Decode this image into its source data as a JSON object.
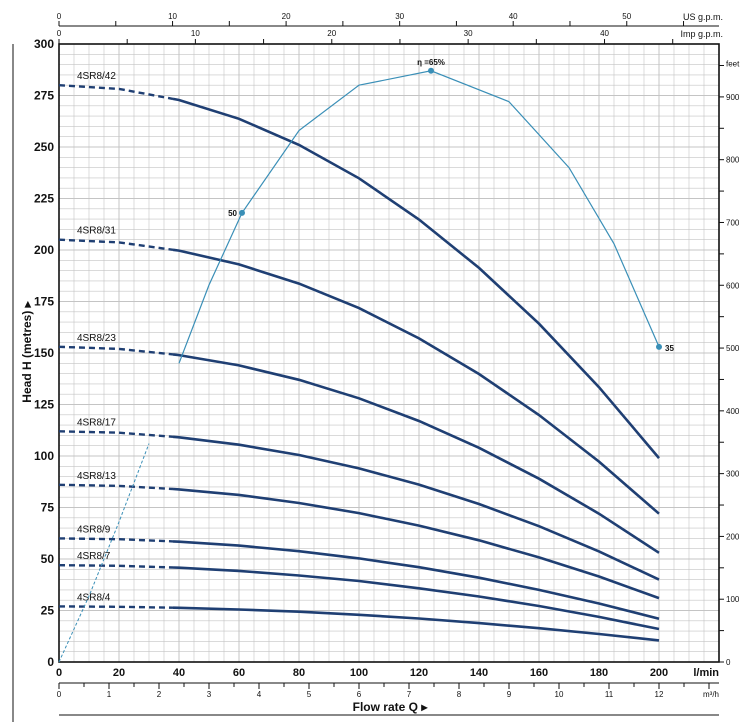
{
  "chart_data": {
    "type": "line",
    "title": "",
    "xlabel": "Flow rate Q",
    "ylabel": "Head H (metres)",
    "xlim": [
      0,
      220
    ],
    "ylim": [
      0,
      300
    ],
    "grid": true,
    "x_unit": "l/min",
    "x_ticks": [
      0,
      20,
      40,
      60,
      80,
      100,
      120,
      140,
      160,
      180,
      200
    ],
    "y_ticks": [
      0,
      25,
      50,
      75,
      100,
      125,
      150,
      175,
      200,
      225,
      250,
      275,
      300
    ],
    "secondary_axes": {
      "top_us": {
        "unit": "US g.p.m.",
        "ticks": [
          0,
          10,
          20,
          30,
          40,
          50
        ]
      },
      "top_imp": {
        "unit": "Imp g.p.m.",
        "ticks": [
          0,
          10,
          20,
          30,
          40
        ]
      },
      "bottom_m3h": {
        "unit": "m³/h",
        "ticks": [
          0,
          1,
          2,
          3,
          4,
          5,
          6,
          7,
          8,
          9,
          10,
          11,
          12
        ]
      },
      "right_feet": {
        "unit": "feet",
        "ticks": [
          0,
          100,
          200,
          300,
          400,
          500,
          600,
          700,
          800,
          900
        ]
      }
    },
    "x": [
      0,
      20,
      40,
      60,
      80,
      100,
      120,
      140,
      160,
      180,
      200
    ],
    "dashed_below_q": 38,
    "series": [
      {
        "name": "4SR8/42",
        "values": [
          280,
          278.2,
          272.8,
          263.7,
          251.0,
          234.8,
          214.8,
          191.3,
          164.2,
          133.4,
          99
        ]
      },
      {
        "name": "4SR8/31",
        "values": [
          205,
          203.7,
          199.7,
          193.0,
          183.7,
          171.8,
          157.1,
          139.8,
          119.9,
          97.3,
          72
        ]
      },
      {
        "name": "4SR8/23",
        "values": [
          153,
          152,
          149,
          144,
          137,
          128,
          117,
          104,
          89,
          72,
          53
        ]
      },
      {
        "name": "4SR8/17",
        "values": [
          112,
          111.3,
          109.1,
          105.5,
          100.5,
          94,
          86.1,
          76.7,
          65.9,
          53.7,
          40
        ]
      },
      {
        "name": "4SR8/13",
        "values": [
          86,
          85.5,
          83.8,
          81.1,
          77.2,
          72.3,
          66.2,
          59.1,
          50.8,
          41.5,
          31
        ]
      },
      {
        "name": "4SR8/9",
        "values": [
          60,
          59.6,
          58.4,
          56.5,
          53.8,
          50.3,
          46,
          40.9,
          35,
          28.4,
          21
        ]
      },
      {
        "name": "4SR8/7",
        "values": [
          47,
          46.7,
          45.8,
          44.2,
          42,
          39.3,
          35.8,
          31.8,
          27.2,
          21.9,
          16
        ]
      },
      {
        "name": "4SR8/4",
        "values": [
          27,
          26.8,
          26.3,
          25.5,
          24.4,
          22.9,
          21.1,
          18.9,
          16.4,
          13.6,
          10.5
        ]
      }
    ],
    "efficiency_curve": {
      "points": [
        [
          0,
          0
        ],
        [
          10,
          32
        ],
        [
          20,
          68
        ],
        [
          30,
          106
        ],
        [
          40,
          145
        ],
        [
          50,
          183
        ],
        [
          61,
          218
        ],
        [
          80,
          258
        ],
        [
          100,
          280
        ],
        [
          124,
          287
        ],
        [
          150,
          272
        ],
        [
          170,
          240
        ],
        [
          185,
          203
        ],
        [
          200,
          153
        ]
      ],
      "dashed_below_q": 40,
      "markers": [
        {
          "q": 61,
          "h": 218,
          "label": "50"
        },
        {
          "q": 124,
          "h": 287,
          "label": "η =65%"
        },
        {
          "q": 200,
          "h": 153,
          "label": "35"
        }
      ]
    },
    "colors": {
      "pump_curve": "#1f3f73",
      "efficiency": "#3a8fb7",
      "grid": "#c4c4c4",
      "axis": "#111111"
    }
  }
}
